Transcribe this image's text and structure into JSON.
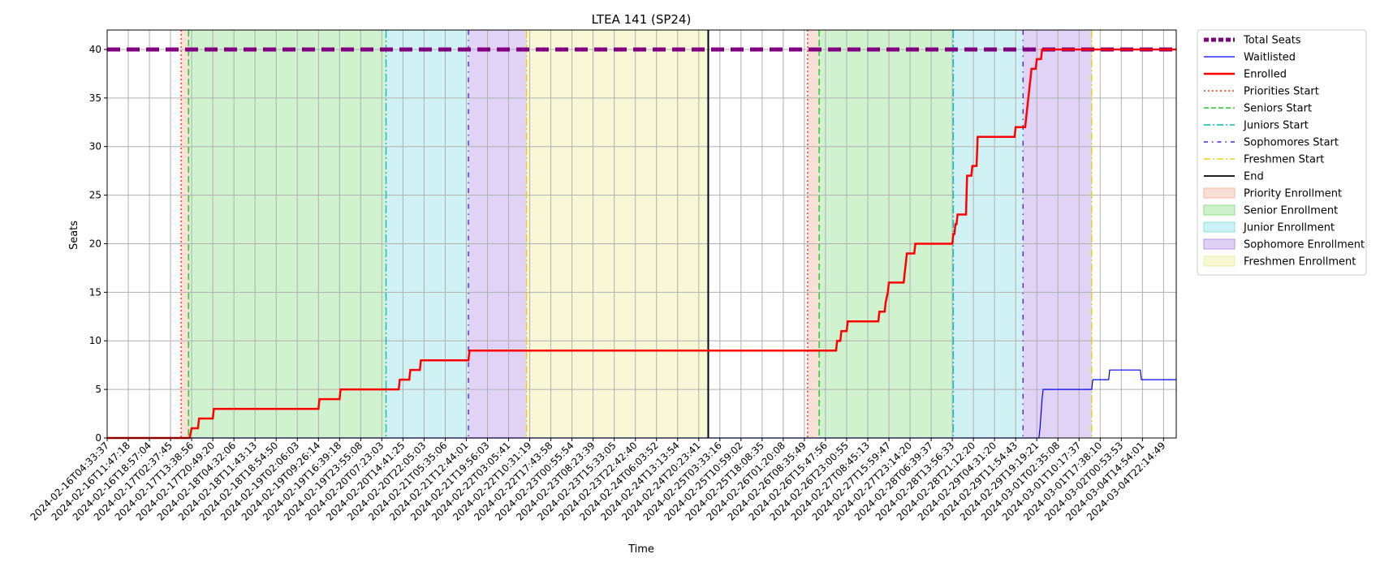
{
  "chart_data": {
    "type": "line",
    "title": "LTEA 141 (SP24)",
    "xlabel": "Time",
    "ylabel": "Seats",
    "ylim": [
      0,
      42
    ],
    "xlim": [
      0,
      50.6
    ],
    "yticks": [
      0,
      5,
      10,
      15,
      20,
      25,
      30,
      35,
      40
    ],
    "x_tick_labels": [
      "2024-02-16T04:33:37",
      "2024-02-16T11:47:18",
      "2024-02-16T18:57:04",
      "2024-02-17T02:37:45",
      "2024-02-17T13:38:56",
      "2024-02-17T20:49:20",
      "2024-02-18T04:32:06",
      "2024-02-18T11:43:13",
      "2024-02-18T18:54:50",
      "2024-02-19T02:06:03",
      "2024-02-19T09:26:14",
      "2024-02-19T16:39:18",
      "2024-02-19T23:55:08",
      "2024-02-20T07:23:03",
      "2024-02-20T14:41:25",
      "2024-02-20T22:05:03",
      "2024-02-21T05:35:06",
      "2024-02-21T12:44:01",
      "2024-02-21T19:56:03",
      "2024-02-22T03:05:41",
      "2024-02-22T10:31:19",
      "2024-02-22T17:43:58",
      "2024-02-23T00:55:54",
      "2024-02-23T08:23:39",
      "2024-02-23T15:33:05",
      "2024-02-23T22:42:40",
      "2024-02-24T06:03:52",
      "2024-02-24T13:13:54",
      "2024-02-24T20:23:41",
      "2024-02-25T03:33:16",
      "2024-02-25T10:59:02",
      "2024-02-25T18:08:35",
      "2024-02-26T01:20:08",
      "2024-02-26T08:35:49",
      "2024-02-26T15:47:56",
      "2024-02-26T23:00:55",
      "2024-02-27T08:45:13",
      "2024-02-27T15:59:47",
      "2024-02-27T23:14:20",
      "2024-02-28T06:39:37",
      "2024-02-28T13:56:33",
      "2024-02-28T21:12:20",
      "2024-02-29T04:31:20",
      "2024-02-29T11:54:43",
      "2024-02-29T19:19:21",
      "2024-03-01T02:35:08",
      "2024-03-01T10:17:37",
      "2024-03-01T17:38:10",
      "2024-03-02T00:53:53",
      "2024-03-04T14:54:01",
      "2024-03-04T22:14:49"
    ],
    "regions": [
      {
        "name": "Priority Enrollment",
        "x0": 3.5,
        "x1": 3.85,
        "color": "#f4b8a0"
      },
      {
        "name": "Senior Enrollment",
        "x0": 3.85,
        "x1": 13.2,
        "color": "#90e08a"
      },
      {
        "name": "Junior Enrollment",
        "x0": 13.2,
        "x1": 17.1,
        "color": "#8fe0e6"
      },
      {
        "name": "Sophomore Enrollment",
        "x0": 17.1,
        "x1": 19.85,
        "color": "#b896ea"
      },
      {
        "name": "Freshmen Enrollment",
        "x0": 19.85,
        "x1": 28.45,
        "color": "#eeeea0"
      },
      {
        "name": "Priority Enrollment",
        "x0": 33.15,
        "x1": 33.7,
        "color": "#f4b8a0"
      },
      {
        "name": "Senior Enrollment",
        "x0": 33.7,
        "x1": 40.05,
        "color": "#90e08a"
      },
      {
        "name": "Junior Enrollment",
        "x0": 40.05,
        "x1": 43.35,
        "color": "#8fe0e6"
      },
      {
        "name": "Sophomore Enrollment",
        "x0": 43.35,
        "x1": 46.6,
        "color": "#b896ea"
      }
    ],
    "vlines": [
      {
        "name": "Priorities Start",
        "x": 3.5,
        "color": "#ff2a1a",
        "dash": "2,3"
      },
      {
        "name": "Seniors Start",
        "x": 3.85,
        "color": "#22c522",
        "dash": "8,4"
      },
      {
        "name": "Juniors Start",
        "x": 13.2,
        "color": "#00c0c0",
        "dash": "10,3,2,3"
      },
      {
        "name": "Sophomores Start",
        "x": 17.1,
        "color": "#5a1fd8",
        "dash": "6,6,1.5,6"
      },
      {
        "name": "Freshmen Start",
        "x": 19.85,
        "color": "#e6d21a",
        "dash": "10,3,2,3"
      },
      {
        "name": "End",
        "x": 28.45,
        "color": "#000000",
        "dash": ""
      },
      {
        "name": "Priorities Start",
        "x": 33.15,
        "color": "#ff2a1a",
        "dash": "2,3"
      },
      {
        "name": "Seniors Start",
        "x": 33.7,
        "color": "#22c522",
        "dash": "8,4"
      },
      {
        "name": "Juniors Start",
        "x": 40.05,
        "color": "#00c0c0",
        "dash": "10,3,2,3"
      },
      {
        "name": "Sophomores Start",
        "x": 43.35,
        "color": "#5a1fd8",
        "dash": "6,6,1.5,6"
      },
      {
        "name": "Freshmen Start",
        "x": 46.6,
        "color": "#e6d21a",
        "dash": "10,3,2,3"
      }
    ],
    "series": [
      {
        "name": "Total Seats",
        "color": "#800080",
        "style": "thick-dashed",
        "x": [
          0,
          50.6
        ],
        "y": [
          40,
          40
        ]
      },
      {
        "name": "Waitlisted",
        "color": "#0000ff",
        "style": "thin",
        "x": [
          0,
          44.1,
          44.15,
          44.25,
          44.3,
          44.45,
          46.6,
          46.65,
          47.4,
          47.45,
          48.9,
          48.95,
          50.6
        ],
        "y": [
          0,
          0,
          1,
          4,
          5,
          5,
          5,
          6,
          6,
          7,
          7,
          6,
          6
        ]
      },
      {
        "name": "Enrolled",
        "color": "#ff0000",
        "style": "thick",
        "x": [
          0,
          3.9,
          4.0,
          4.3,
          4.35,
          5.0,
          5.05,
          10.0,
          10.05,
          11.0,
          11.05,
          13.8,
          13.85,
          14.3,
          14.35,
          14.8,
          14.85,
          17.1,
          17.15,
          34.5,
          34.55,
          34.7,
          34.75,
          35.0,
          35.05,
          36.5,
          36.55,
          36.8,
          36.85,
          36.95,
          37.0,
          37.05,
          37.1,
          37.15,
          37.2,
          37.7,
          37.75,
          37.8,
          37.85,
          38.2,
          38.25,
          39.65,
          39.7,
          40.0,
          40.05,
          40.1,
          40.15,
          40.2,
          40.25,
          40.65,
          40.7,
          40.9,
          40.95,
          41.15,
          41.2,
          42.95,
          43.0,
          43.4,
          43.45,
          43.5,
          43.55,
          43.6,
          43.65,
          43.7,
          43.75,
          43.95,
          44.0,
          44.2,
          44.25,
          50.6
        ],
        "y": [
          0,
          0,
          1,
          1,
          2,
          2,
          3,
          3,
          4,
          4,
          5,
          5,
          6,
          6,
          7,
          7,
          8,
          8,
          9,
          9,
          10,
          10,
          11,
          11,
          12,
          12,
          13,
          13,
          14,
          15,
          16,
          16,
          16,
          16,
          16,
          16,
          17,
          18,
          19,
          19,
          20,
          20,
          20,
          20,
          21,
          21,
          22,
          22,
          23,
          23,
          27,
          27,
          28,
          28,
          31,
          31,
          32,
          32,
          32,
          33,
          34,
          35,
          36,
          37,
          38,
          38,
          39,
          39,
          40,
          40
        ]
      }
    ],
    "legend": {
      "position": "outside-right",
      "entries": [
        {
          "label": "Total Seats",
          "kind": "line",
          "color": "#800080",
          "dash": "6,3",
          "width": 5
        },
        {
          "label": "Waitlisted",
          "kind": "line",
          "color": "#0000ff",
          "dash": "",
          "width": 1.2
        },
        {
          "label": "Enrolled",
          "kind": "line",
          "color": "#ff0000",
          "dash": "",
          "width": 2.4
        },
        {
          "label": "Priorities Start",
          "kind": "line",
          "color": "#ff2a1a",
          "dash": "2,3",
          "width": 1.4
        },
        {
          "label": "Seniors Start",
          "kind": "line",
          "color": "#22c522",
          "dash": "6,3",
          "width": 1.4
        },
        {
          "label": "Juniors Start",
          "kind": "line",
          "color": "#00c0c0",
          "dash": "8,3,2,3",
          "width": 1.4
        },
        {
          "label": "Sophomores Start",
          "kind": "line",
          "color": "#5a1fd8",
          "dash": "5,5,1.5,5",
          "width": 1.4
        },
        {
          "label": "Freshmen Start",
          "kind": "line",
          "color": "#e6d21a",
          "dash": "8,3,2,3",
          "width": 1.4
        },
        {
          "label": "End",
          "kind": "line",
          "color": "#000000",
          "dash": "",
          "width": 1.8
        },
        {
          "label": "Priority Enrollment",
          "kind": "patch",
          "color": "#f4b8a0"
        },
        {
          "label": "Senior Enrollment",
          "kind": "patch",
          "color": "#90e08a"
        },
        {
          "label": "Junior Enrollment",
          "kind": "patch",
          "color": "#8fe0e6"
        },
        {
          "label": "Sophomore Enrollment",
          "kind": "patch",
          "color": "#b896ea"
        },
        {
          "label": "Freshmen Enrollment",
          "kind": "patch",
          "color": "#eeeea0"
        }
      ]
    },
    "grid": true
  }
}
